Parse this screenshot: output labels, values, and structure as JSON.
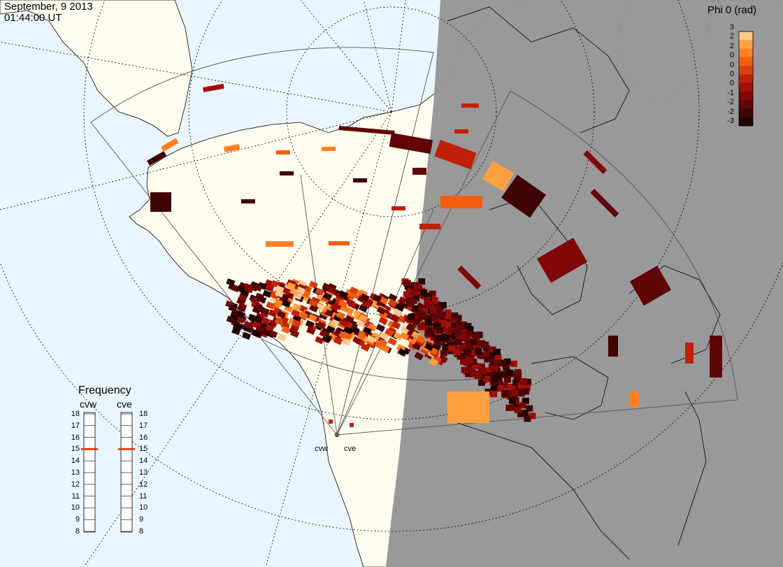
{
  "header": {
    "date": "September, 9 2013",
    "time": "01:44:00 UT"
  },
  "colorbar": {
    "title": "Phi 0 (rad)",
    "ticks": [
      "3",
      "2",
      "2",
      "0",
      "0",
      "0",
      "0",
      "-1",
      "-2",
      "-2",
      "-3"
    ],
    "colors": [
      "#ffc890",
      "#ffa040",
      "#ff8020",
      "#f06010",
      "#d84010",
      "#c02008",
      "#a01008",
      "#800808",
      "#600606",
      "#400404",
      "#200202"
    ]
  },
  "frequency_panel": {
    "title": "Frequency",
    "radars": [
      "cvw",
      "cve"
    ],
    "ticks": [
      "18",
      "17",
      "16",
      "15",
      "14",
      "13",
      "12",
      "11",
      "10",
      "9",
      "8"
    ],
    "current_mhz": [
      15,
      15
    ],
    "indicator_color": "#e04010"
  },
  "sites": {
    "labels": [
      "cvw",
      "cve"
    ]
  },
  "colors": {
    "ocean": "#eaf6fd",
    "land": "#fdfcee",
    "night": "#969696"
  }
}
